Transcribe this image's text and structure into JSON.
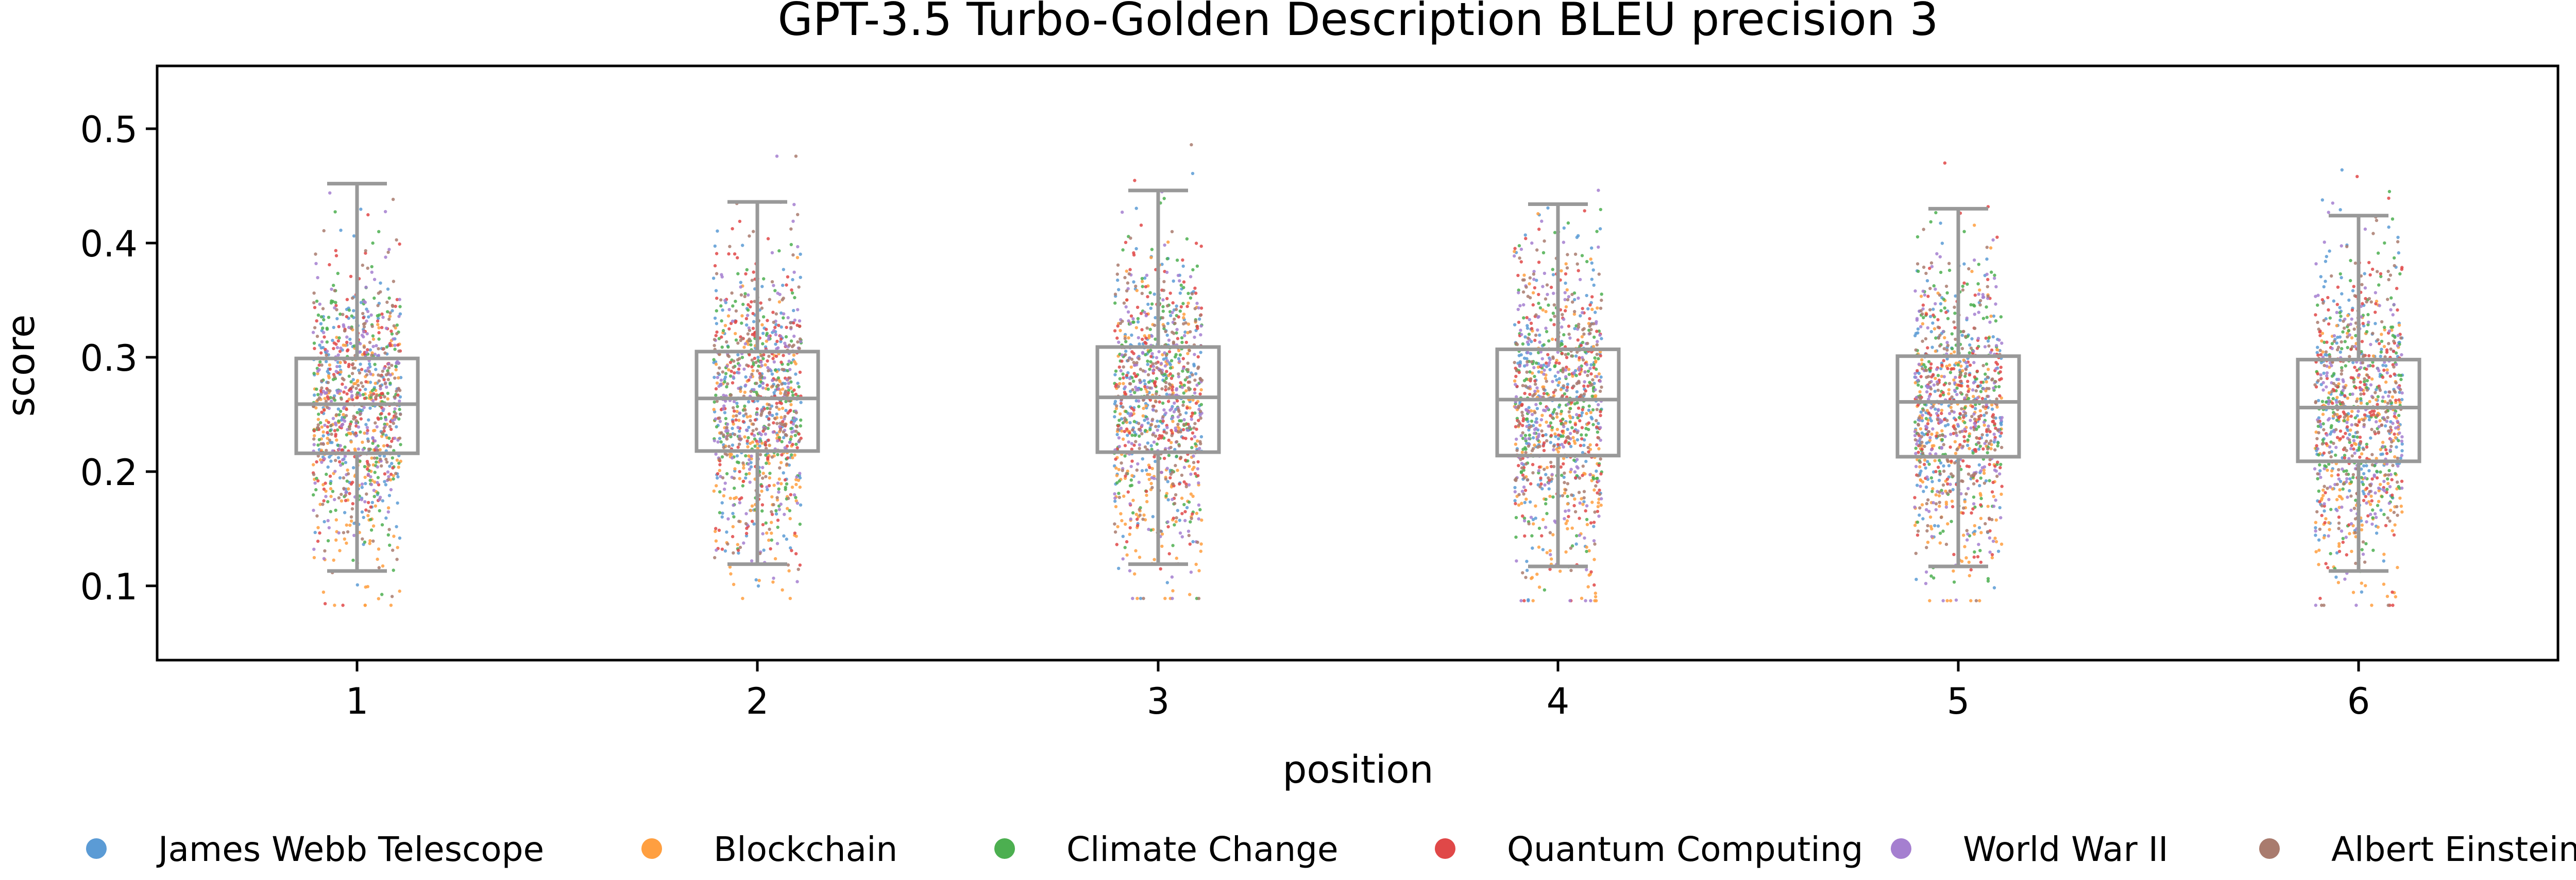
{
  "chart_data": {
    "type": "box",
    "overlay": "strip",
    "title": "GPT-3.5 Turbo-Golden Description BLEU precision 3",
    "xlabel": "position",
    "ylabel": "score",
    "categories": [
      "1",
      "2",
      "3",
      "4",
      "5",
      "6"
    ],
    "ylim": [
      0.035,
      0.555
    ],
    "yticks": [
      0.1,
      0.2,
      0.3,
      0.4,
      0.5
    ],
    "ytick_labels": [
      "0.1",
      "0.2",
      "0.3",
      "0.4",
      "0.5"
    ],
    "grid": false,
    "legend_position": "bottom",
    "box_color": "#999999",
    "boxes": [
      {
        "category": "1",
        "whisker_low": 0.113,
        "q1": 0.216,
        "median": 0.259,
        "q3": 0.299,
        "whisker_high": 0.452
      },
      {
        "category": "2",
        "whisker_low": 0.119,
        "q1": 0.218,
        "median": 0.264,
        "q3": 0.305,
        "whisker_high": 0.436
      },
      {
        "category": "3",
        "whisker_low": 0.119,
        "q1": 0.217,
        "median": 0.265,
        "q3": 0.309,
        "whisker_high": 0.446
      },
      {
        "category": "4",
        "whisker_low": 0.117,
        "q1": 0.214,
        "median": 0.263,
        "q3": 0.307,
        "whisker_high": 0.434
      },
      {
        "category": "5",
        "whisker_low": 0.117,
        "q1": 0.213,
        "median": 0.261,
        "q3": 0.301,
        "whisker_high": 0.43
      },
      {
        "category": "6",
        "whisker_low": 0.113,
        "q1": 0.209,
        "median": 0.256,
        "q3": 0.298,
        "whisker_high": 0.424
      }
    ],
    "series": [
      {
        "name": "James Webb Telescope",
        "color": "#5b9bd5"
      },
      {
        "name": "Blockchain",
        "color": "#ff9f40"
      },
      {
        "name": "Climate Change",
        "color": "#4caf50"
      },
      {
        "name": "Quantum Computing",
        "color": "#e04848"
      },
      {
        "name": "World War II",
        "color": "#a57fd0"
      },
      {
        "name": "Albert Einstein",
        "color": "#a97b6e"
      }
    ]
  }
}
